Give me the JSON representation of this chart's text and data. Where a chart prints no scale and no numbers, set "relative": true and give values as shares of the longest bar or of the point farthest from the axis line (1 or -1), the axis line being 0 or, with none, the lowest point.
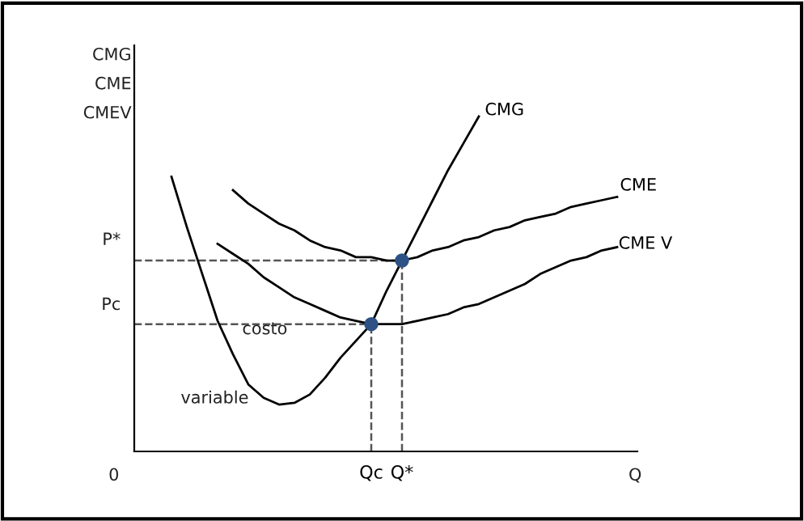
{
  "chart_data": {
    "type": "line",
    "relative": true,
    "ylabel": "CMG\nCME\nCMEV",
    "categories": [
      null,
      null,
      null,
      null,
      null,
      null,
      null,
      null,
      null,
      null,
      null,
      null,
      null,
      null,
      null,
      "Qc",
      null,
      "Q*",
      null,
      null,
      null,
      null,
      null,
      null,
      null,
      null,
      null,
      null,
      null,
      null,
      null,
      null,
      null
    ],
    "marker": "none",
    "line_style": "solid",
    "grid": false,
    "legend": false,
    "series": [
      {
        "name": "CMG",
        "color": "#000000",
        "values": [
          null,
          null,
          0.82,
          0.67,
          0.53,
          0.39,
          0.29,
          0.2,
          0.16,
          0.14,
          0.145,
          0.17,
          0.22,
          0.28,
          0.33,
          0.38,
          0.48,
          0.57,
          0.66,
          0.75,
          0.84,
          0.92,
          1.0,
          null,
          null,
          null,
          null,
          null,
          null,
          null,
          null,
          null,
          null
        ]
      },
      {
        "name": "CME",
        "color": "#000000",
        "values": [
          null,
          null,
          null,
          null,
          null,
          null,
          0.78,
          0.74,
          0.71,
          0.68,
          0.66,
          0.63,
          0.61,
          0.6,
          0.58,
          0.58,
          0.57,
          0.57,
          0.58,
          0.6,
          0.61,
          0.63,
          0.64,
          0.66,
          0.67,
          0.69,
          0.7,
          0.71,
          0.73,
          0.74,
          0.75,
          0.76,
          null
        ]
      },
      {
        "name": "CME V",
        "color": "#000000",
        "values": [
          null,
          null,
          null,
          null,
          null,
          0.62,
          0.59,
          0.56,
          0.52,
          0.49,
          0.46,
          0.44,
          0.42,
          0.4,
          0.39,
          0.38,
          0.38,
          0.38,
          0.39,
          0.4,
          0.41,
          0.43,
          0.44,
          0.46,
          0.48,
          0.5,
          0.53,
          0.55,
          0.57,
          0.58,
          0.6,
          0.61,
          null
        ]
      },
      {
        "type": "scatter",
        "marker": "circle",
        "color": "#2e5285",
        "x": [
          "Qc",
          "Q*"
        ],
        "values": [
          0.38,
          0.57
        ]
      }
    ],
    "annotations": [
      "0",
      "Q",
      "P*",
      "Pc",
      "costo",
      "variable"
    ]
  }
}
